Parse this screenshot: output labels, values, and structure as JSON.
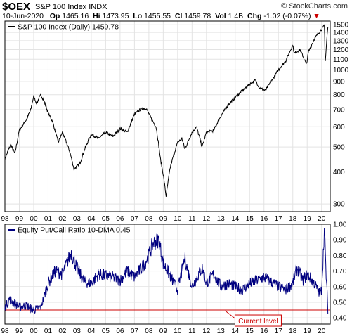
{
  "header": {
    "symbol": "$OEX",
    "name": "S&P 100 Index",
    "exchange": "INDX",
    "brand": "© StockCharts.com",
    "date": "10-Jun-2020",
    "op_label": "Op",
    "op": "1465.16",
    "hi_label": "Hi",
    "hi": "1473.95",
    "lo_label": "Lo",
    "lo": "1455.55",
    "cl_label": "Cl",
    "cl": "1459.78",
    "vol_label": "Vol",
    "vol": "1.4B",
    "chg_label": "Chg",
    "chg": "-1.02 (-0.07%)",
    "chg_arrow": "▼"
  },
  "colors": {
    "price_line": "#000000",
    "ratio_line": "#000080",
    "current_level": "#cc0000",
    "grid": "#e3e3e3"
  },
  "chart_data": [
    {
      "type": "line",
      "title": "S&P 100 Index (Daily) 1459.78",
      "y_scale": "log",
      "ylim": [
        280,
        1550
      ],
      "yticks": [
        300,
        400,
        500,
        600,
        700,
        800,
        900,
        1000,
        1100,
        1200,
        1300,
        1400,
        1500
      ],
      "xticks": [
        "98",
        "99",
        "00",
        "01",
        "02",
        "03",
        "04",
        "05",
        "06",
        "07",
        "08",
        "09",
        "10",
        "11",
        "12",
        "13",
        "14",
        "15",
        "16",
        "17",
        "18",
        "19",
        "20"
      ],
      "xlim": [
        1998.0,
        2020.6
      ],
      "grid": true,
      "series": [
        {
          "x": [
            1998.0,
            1998.4,
            1998.7,
            1999.0,
            1999.5,
            1999.8,
            2000.0,
            2000.2,
            2000.5,
            2000.7,
            2001.0,
            2001.3,
            2001.7,
            2002.0,
            2002.5,
            2002.8,
            2003.2,
            2003.6,
            2004.0,
            2004.5,
            2005.0,
            2005.5,
            2006.0,
            2006.5,
            2007.0,
            2007.4,
            2007.8,
            2008.2,
            2008.5,
            2008.8,
            2009.0,
            2009.2,
            2009.5,
            2010.0,
            2010.3,
            2010.5,
            2011.0,
            2011.3,
            2011.7,
            2012.0,
            2012.5,
            2013.0,
            2013.5,
            2014.0,
            2014.5,
            2015.0,
            2015.4,
            2015.7,
            2016.1,
            2016.5,
            2017.0,
            2017.5,
            2018.0,
            2018.1,
            2018.5,
            2018.95,
            2019.1,
            2019.5,
            2019.9,
            2020.1,
            2020.2,
            2020.25,
            2020.4,
            2020.44
          ],
          "y": [
            450,
            510,
            470,
            580,
            640,
            700,
            790,
            740,
            800,
            760,
            680,
            630,
            520,
            570,
            480,
            410,
            430,
            500,
            560,
            540,
            570,
            550,
            590,
            570,
            670,
            700,
            710,
            640,
            600,
            450,
            390,
            320,
            420,
            520,
            540,
            490,
            570,
            600,
            500,
            570,
            580,
            660,
            730,
            780,
            830,
            880,
            910,
            850,
            830,
            900,
            1000,
            1080,
            1250,
            1160,
            1200,
            1050,
            1180,
            1320,
            1420,
            1460,
            1500,
            1050,
            1400,
            1459.78
          ]
        }
      ]
    },
    {
      "type": "line",
      "title": "Equity Put/Call Ratio 10-DMA 0.45",
      "ylim": [
        0.36,
        1.0
      ],
      "yticks": [
        0.4,
        0.5,
        0.6,
        0.7,
        0.8,
        0.9,
        1.0
      ],
      "xticks": [
        "98",
        "99",
        "00",
        "01",
        "02",
        "03",
        "04",
        "05",
        "06",
        "07",
        "08",
        "09",
        "10",
        "11",
        "12",
        "13",
        "14",
        "15",
        "16",
        "17",
        "18",
        "19",
        "20"
      ],
      "xlim": [
        1998.0,
        2020.6
      ],
      "grid": true,
      "reference_line": {
        "value": 0.45,
        "label": "Current level"
      },
      "series": [
        {
          "x": [
            1998.0,
            1998.3,
            1998.7,
            1999.0,
            1999.5,
            2000.0,
            2000.5,
            2001.0,
            2001.5,
            2002.0,
            2002.6,
            2003.0,
            2003.5,
            2004.0,
            2004.5,
            2005.0,
            2005.5,
            2006.0,
            2006.5,
            2007.0,
            2007.5,
            2007.9,
            2008.3,
            2008.7,
            2009.0,
            2009.3,
            2009.7,
            2010.0,
            2010.5,
            2011.0,
            2011.7,
            2012.0,
            2012.5,
            2013.0,
            2013.5,
            2014.0,
            2014.5,
            2015.0,
            2015.5,
            2016.0,
            2016.5,
            2017.0,
            2017.5,
            2018.0,
            2018.3,
            2018.7,
            2019.0,
            2019.5,
            2019.9,
            2020.0,
            2020.2,
            2020.3,
            2020.44
          ],
          "y": [
            0.46,
            0.52,
            0.49,
            0.47,
            0.48,
            0.45,
            0.47,
            0.62,
            0.7,
            0.68,
            0.82,
            0.72,
            0.63,
            0.62,
            0.68,
            0.67,
            0.66,
            0.64,
            0.7,
            0.66,
            0.72,
            0.78,
            0.88,
            0.9,
            0.75,
            0.7,
            0.63,
            0.58,
            0.78,
            0.6,
            0.72,
            0.62,
            0.68,
            0.6,
            0.62,
            0.6,
            0.58,
            0.62,
            0.64,
            0.66,
            0.63,
            0.6,
            0.58,
            0.62,
            0.72,
            0.64,
            0.68,
            0.62,
            0.55,
            0.58,
            0.98,
            0.7,
            0.45
          ]
        }
      ]
    }
  ]
}
